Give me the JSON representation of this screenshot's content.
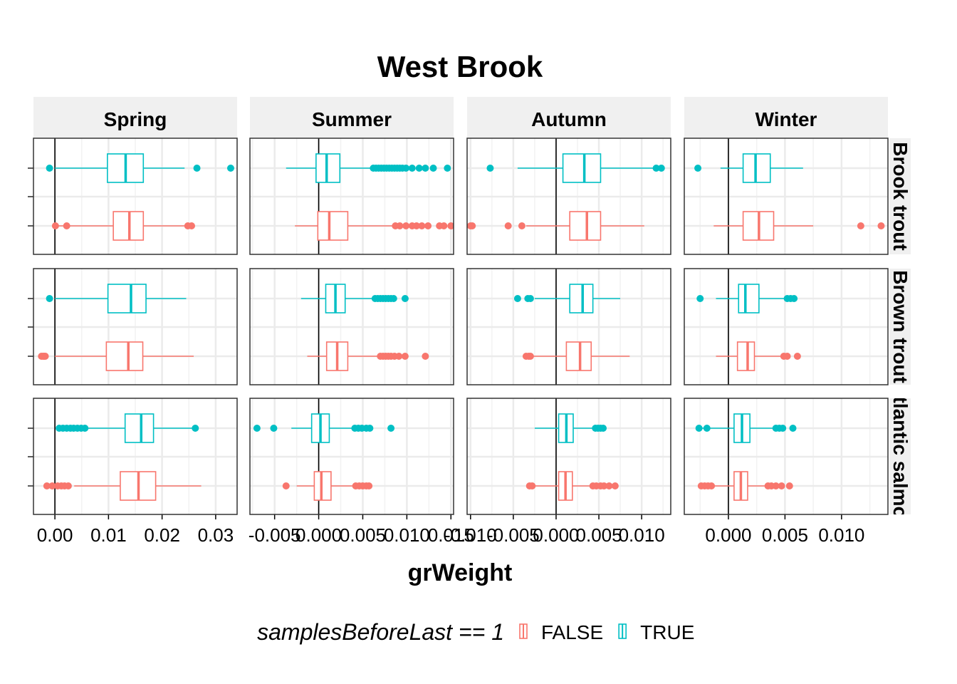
{
  "chart_data": {
    "type": "boxplot",
    "title": "West Brook",
    "xlabel": "grWeight",
    "ylabel": "",
    "facet_columns": [
      "Spring",
      "Summer",
      "Autumn",
      "Winter"
    ],
    "facet_rows": [
      "Brook trout",
      "Brown trout",
      "Atlantic salmon"
    ],
    "legend": {
      "title": "samplesBeforeLast == 1",
      "placement": "bottom",
      "entries": [
        {
          "label": "FALSE",
          "color": "#F8766D"
        },
        {
          "label": "TRUE",
          "color": "#00BFC4"
        }
      ]
    },
    "grid": true,
    "vertical_reference_line": 0,
    "x_axes": [
      {
        "column": "Spring",
        "range": [
          -0.004,
          0.034
        ],
        "ticks": [
          0.0,
          0.01,
          0.02,
          0.03
        ],
        "tick_labels": [
          "0.00",
          "0.01",
          "0.02",
          "0.03"
        ]
      },
      {
        "column": "Summer",
        "range": [
          -0.0078,
          0.0153
        ],
        "ticks": [
          -0.005,
          0.0,
          0.005,
          0.01,
          0.015
        ],
        "tick_labels": [
          "-0.005",
          "0.000",
          "0.005",
          "0.010",
          "0.015"
        ]
      },
      {
        "column": "Autumn",
        "range": [
          -0.0104,
          0.0134
        ],
        "ticks": [
          -0.01,
          -0.005,
          0.0,
          0.005,
          0.01
        ],
        "tick_labels": [
          "-0.010",
          "-0.005",
          "0.000",
          "0.005",
          "0.010"
        ]
      },
      {
        "column": "Winter",
        "range": [
          -0.0039,
          0.0141
        ],
        "ticks": [
          0.0,
          0.005,
          0.01
        ],
        "tick_labels": [
          "0.000",
          "0.005",
          "0.010"
        ]
      }
    ],
    "panels": [
      {
        "row": "Brook trout",
        "column": "Spring",
        "boxes": [
          {
            "group": "TRUE",
            "whisker_low": 0.0,
            "q1": 0.0098,
            "median": 0.0132,
            "q3": 0.0165,
            "whisker_high": 0.0242,
            "outliers": [
              -0.001,
              0.0265,
              0.0328
            ]
          },
          {
            "group": "FALSE",
            "whisker_low": 0.0,
            "q1": 0.0109,
            "median": 0.0139,
            "q3": 0.0165,
            "whisker_high": 0.0245,
            "outliers": [
              0.0001,
              0.0022,
              0.0248,
              0.0255
            ]
          }
        ]
      },
      {
        "row": "Brook trout",
        "column": "Summer",
        "boxes": [
          {
            "group": "TRUE",
            "whisker_low": -0.0037,
            "q1": -0.0003,
            "median": 0.0009,
            "q3": 0.0024,
            "whisker_high": 0.0062,
            "outliers": [
              0.0062,
              0.0065,
              0.0068,
              0.0071,
              0.0074,
              0.0077,
              0.008,
              0.0083,
              0.0086,
              0.0089,
              0.0092,
              0.0095,
              0.0099,
              0.0106,
              0.0114,
              0.0121,
              0.013,
              0.0146
            ]
          },
          {
            "group": "FALSE",
            "whisker_low": -0.0027,
            "q1": -0.0001,
            "median": 0.0012,
            "q3": 0.0033,
            "whisker_high": 0.0087,
            "outliers": [
              0.0087,
              0.0092,
              0.0099,
              0.0106,
              0.0111,
              0.0117,
              0.0124,
              0.0137,
              0.0142,
              0.015
            ]
          }
        ]
      },
      {
        "row": "Brook trout",
        "column": "Autumn",
        "boxes": [
          {
            "group": "TRUE",
            "whisker_low": -0.0045,
            "q1": 0.0008,
            "median": 0.0033,
            "q3": 0.0052,
            "whisker_high": 0.0114,
            "outliers": [
              -0.0077,
              0.0117,
              0.0123
            ]
          },
          {
            "group": "FALSE",
            "whisker_low": -0.0035,
            "q1": 0.0016,
            "median": 0.0036,
            "q3": 0.0052,
            "whisker_high": 0.0103,
            "outliers": [
              -0.01,
              -0.0098,
              -0.0056,
              -0.004
            ]
          }
        ]
      },
      {
        "row": "Brook trout",
        "column": "Winter",
        "boxes": [
          {
            "group": "TRUE",
            "whisker_low": -0.0007,
            "q1": 0.0013,
            "median": 0.0024,
            "q3": 0.0037,
            "whisker_high": 0.0066,
            "outliers": [
              -0.0027
            ]
          },
          {
            "group": "FALSE",
            "whisker_low": -0.0013,
            "q1": 0.0013,
            "median": 0.0027,
            "q3": 0.004,
            "whisker_high": 0.0075,
            "outliers": [
              0.0117,
              0.0135
            ]
          }
        ]
      },
      {
        "row": "Brown trout",
        "column": "Spring",
        "boxes": [
          {
            "group": "TRUE",
            "whisker_low": 0.0,
            "q1": 0.0099,
            "median": 0.0142,
            "q3": 0.017,
            "whisker_high": 0.0245,
            "outliers": [
              -0.001
            ]
          },
          {
            "group": "FALSE",
            "whisker_low": 0.0,
            "q1": 0.0096,
            "median": 0.0137,
            "q3": 0.0164,
            "whisker_high": 0.0259,
            "outliers": [
              -0.0025,
              -0.0022,
              -0.002,
              -0.0018
            ]
          }
        ]
      },
      {
        "row": "Brown trout",
        "column": "Summer",
        "boxes": [
          {
            "group": "TRUE",
            "whisker_low": -0.002,
            "q1": 0.0008,
            "median": 0.0019,
            "q3": 0.003,
            "whisker_high": 0.0062,
            "outliers": [
              0.0064,
              0.0067,
              0.007,
              0.0073,
              0.0076,
              0.0079,
              0.0082,
              0.0085,
              0.0098
            ]
          },
          {
            "group": "FALSE",
            "whisker_low": -0.0013,
            "q1": 0.0009,
            "median": 0.0021,
            "q3": 0.0033,
            "whisker_high": 0.0068,
            "outliers": [
              0.007,
              0.0073,
              0.0076,
              0.0079,
              0.0082,
              0.0086,
              0.0091,
              0.0098,
              0.0121
            ]
          }
        ]
      },
      {
        "row": "Brown trout",
        "column": "Autumn",
        "boxes": [
          {
            "group": "TRUE",
            "whisker_low": -0.0025,
            "q1": 0.0016,
            "median": 0.0031,
            "q3": 0.0043,
            "whisker_high": 0.0075,
            "outliers": [
              -0.0045,
              -0.0033,
              -0.003
            ]
          },
          {
            "group": "FALSE",
            "whisker_low": -0.0027,
            "q1": 0.0012,
            "median": 0.0028,
            "q3": 0.0041,
            "whisker_high": 0.0086,
            "outliers": [
              -0.0035,
              -0.0032,
              -0.003
            ]
          }
        ]
      },
      {
        "row": "Brown trout",
        "column": "Winter",
        "boxes": [
          {
            "group": "TRUE",
            "whisker_low": -0.0011,
            "q1": 0.0009,
            "median": 0.0015,
            "q3": 0.0027,
            "whisker_high": 0.0052,
            "outliers": [
              -0.0025,
              0.0052,
              0.0055,
              0.0058
            ]
          },
          {
            "group": "FALSE",
            "whisker_low": -0.0011,
            "q1": 0.0008,
            "median": 0.0017,
            "q3": 0.0023,
            "whisker_high": 0.0049,
            "outliers": [
              0.0049,
              0.0052,
              0.0061
            ]
          }
        ]
      },
      {
        "row": "Atlantic salmon",
        "column": "Spring",
        "boxes": [
          {
            "group": "TRUE",
            "whisker_low": 0.0008,
            "q1": 0.0131,
            "median": 0.0161,
            "q3": 0.0184,
            "whisker_high": 0.0262,
            "outliers": [
              0.0008,
              0.0015,
              0.0022,
              0.0029,
              0.0035,
              0.0042,
              0.0049,
              0.0056,
              0.0262
            ]
          },
          {
            "group": "FALSE",
            "whisker_low": 0.0036,
            "q1": 0.0122,
            "median": 0.0156,
            "q3": 0.0188,
            "whisker_high": 0.0273,
            "outliers": [
              -0.0015,
              -0.0005,
              0.0005,
              0.0012,
              0.0018,
              0.0025
            ]
          }
        ]
      },
      {
        "row": "Atlantic salmon",
        "column": "Summer",
        "boxes": [
          {
            "group": "TRUE",
            "whisker_low": -0.0031,
            "q1": -0.0008,
            "median": 0.0002,
            "q3": 0.0012,
            "whisker_high": 0.0038,
            "outliers": [
              -0.007,
              -0.0051,
              0.0041,
              0.0045,
              0.0049,
              0.0054,
              0.0058,
              0.0082
            ]
          },
          {
            "group": "FALSE",
            "whisker_low": -0.0025,
            "q1": -0.0005,
            "median": 0.0003,
            "q3": 0.0014,
            "whisker_high": 0.0042,
            "outliers": [
              -0.0037,
              0.0042,
              0.0046,
              0.005,
              0.0054,
              0.0057
            ]
          }
        ]
      },
      {
        "row": "Atlantic salmon",
        "column": "Autumn",
        "boxes": [
          {
            "group": "TRUE",
            "whisker_low": -0.0025,
            "q1": 0.0003,
            "median": 0.0012,
            "q3": 0.002,
            "whisker_high": 0.0045,
            "outliers": [
              0.0046,
              0.0049,
              0.0052,
              0.0055
            ]
          },
          {
            "group": "FALSE",
            "whisker_low": -0.0032,
            "q1": 0.0003,
            "median": 0.0011,
            "q3": 0.0019,
            "whisker_high": 0.0042,
            "outliers": [
              -0.0031,
              -0.0028,
              0.0043,
              0.0047,
              0.0052,
              0.0056,
              0.0062,
              0.0069
            ]
          }
        ]
      },
      {
        "row": "Atlantic salmon",
        "column": "Winter",
        "boxes": [
          {
            "group": "TRUE",
            "whisker_low": -0.0023,
            "q1": 0.0005,
            "median": 0.0012,
            "q3": 0.0019,
            "whisker_high": 0.0042,
            "outliers": [
              -0.0026,
              -0.0019,
              0.0042,
              0.0045,
              0.0048,
              0.0057
            ]
          },
          {
            "group": "FALSE",
            "whisker_low": -0.0022,
            "q1": 0.0005,
            "median": 0.0011,
            "q3": 0.0017,
            "whisker_high": 0.0034,
            "outliers": [
              -0.0024,
              -0.0021,
              -0.0018,
              -0.0015,
              0.0035,
              0.0038,
              0.0042,
              0.0047,
              0.0054
            ]
          }
        ]
      }
    ]
  }
}
